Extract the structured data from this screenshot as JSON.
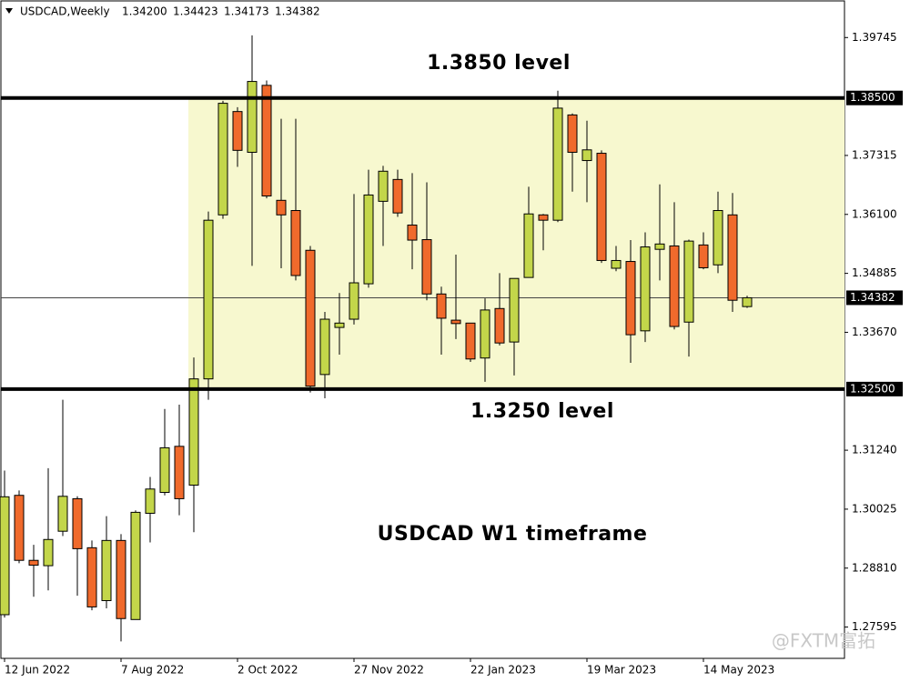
{
  "chart_data": {
    "type": "candlestick",
    "header": {
      "symbol": "USDCAD,Weekly",
      "values": [
        "1.34200",
        "1.34423",
        "1.34173",
        "1.34382"
      ]
    },
    "categories": [
      "12 Jun 2022",
      null,
      null,
      null,
      null,
      null,
      null,
      null,
      "7 Aug 2022",
      null,
      null,
      null,
      null,
      null,
      null,
      null,
      "2 Oct 2022",
      null,
      null,
      null,
      null,
      null,
      null,
      null,
      "27 Nov 2022",
      null,
      null,
      null,
      null,
      null,
      null,
      null,
      "22 Jan 2023",
      null,
      null,
      null,
      null,
      null,
      null,
      null,
      "19 Mar 2023",
      null,
      null,
      null,
      null,
      null,
      null,
      null,
      "14 May 2023",
      null,
      null,
      null
    ],
    "open": [
      1.2785,
      1.3031,
      1.2897,
      1.2886,
      1.2957,
      1.3024,
      1.2923,
      1.2814,
      1.2938,
      1.2775,
      1.2994,
      1.3037,
      1.3132,
      1.3052,
      1.3271,
      1.3609,
      1.3822,
      1.3738,
      1.3876,
      1.3639,
      1.3618,
      1.3536,
      1.328,
      1.3377,
      1.3394,
      1.3467,
      1.3637,
      1.3682,
      1.3588,
      1.3558,
      1.3446,
      1.3392,
      1.3386,
      1.3314,
      1.3416,
      1.3347,
      1.348,
      1.3609,
      1.3598,
      1.3815,
      1.3721,
      1.3736,
      1.3499,
      1.3513,
      1.337,
      1.3538,
      1.3545,
      1.3388,
      1.3547,
      1.3506,
      1.3609,
      1.342
    ],
    "high": [
      1.3082,
      1.3041,
      1.2929,
      1.3087,
      1.3228,
      1.3029,
      1.2938,
      1.2988,
      1.2951,
      1.3,
      1.3069,
      1.3209,
      1.3218,
      1.3315,
      1.3616,
      1.3844,
      1.3831,
      1.3979,
      1.3886,
      1.3807,
      1.3807,
      1.3545,
      1.3409,
      1.3448,
      1.3652,
      1.3702,
      1.371,
      1.3702,
      1.3695,
      1.3676,
      1.3461,
      1.3527,
      1.3386,
      1.3437,
      1.3489,
      1.3478,
      1.3667,
      1.3611,
      1.3865,
      1.3818,
      1.3803,
      1.3742,
      1.3545,
      1.3557,
      1.3573,
      1.3672,
      1.3635,
      1.3558,
      1.3573,
      1.3657,
      1.3654,
      1.34423
    ],
    "low": [
      1.2779,
      1.2891,
      1.2822,
      1.2835,
      1.2947,
      1.2824,
      1.2794,
      1.2798,
      1.273,
      1.2775,
      1.2934,
      1.3031,
      1.299,
      1.2955,
      1.3228,
      1.3601,
      1.3708,
      1.3504,
      1.3643,
      1.3499,
      1.3474,
      1.3243,
      1.3231,
      1.3321,
      1.3383,
      1.3459,
      1.3545,
      1.3605,
      1.3497,
      1.3433,
      1.3321,
      1.3353,
      1.3306,
      1.3265,
      1.334,
      1.3278,
      1.348,
      1.3536,
      1.3594,
      1.3657,
      1.3635,
      1.351,
      1.3493,
      1.3304,
      1.3347,
      1.3474,
      1.3373,
      1.3317,
      1.3497,
      1.3489,
      1.3409,
      1.34173
    ],
    "close": [
      1.3028,
      1.2897,
      1.2887,
      1.294,
      1.3029,
      1.2921,
      1.2801,
      1.2938,
      1.2777,
      1.2996,
      1.3044,
      1.3129,
      1.3024,
      1.3271,
      1.3598,
      1.3839,
      1.3742,
      1.3884,
      1.3648,
      1.3609,
      1.3484,
      1.3256,
      1.3394,
      1.3386,
      1.3469,
      1.365,
      1.3699,
      1.3613,
      1.3557,
      1.3446,
      1.3396,
      1.3385,
      1.3312,
      1.3413,
      1.3345,
      1.3478,
      1.3611,
      1.3598,
      1.3829,
      1.3738,
      1.3743,
      1.3515,
      1.3515,
      1.3362,
      1.3543,
      1.3549,
      1.3379,
      1.3555,
      1.35,
      1.3618,
      1.3433,
      1.34382
    ],
    "up_color": "#c3d64a",
    "down_color": "#f06a2c",
    "ylim": [
      1.2695,
      1.405
    ],
    "yticks": [
      1.39745,
      1.37315,
      {
        "value": 1.361,
        "label": "1.36100"
      },
      1.34885,
      {
        "value": 1.3367,
        "label": "1.33670"
      },
      {
        "value": 1.3124,
        "label": "1.31240"
      },
      1.30025,
      {
        "value": 1.2881,
        "label": "1.28810"
      },
      1.27595
    ],
    "levels": [
      {
        "value": 1.385,
        "label": "1.38500",
        "annotation": "1.3850 level"
      },
      {
        "value": 1.325,
        "label": "1.32500",
        "annotation": "1.3250 level"
      }
    ],
    "zone_color": "#f7f8cf",
    "price_line": {
      "value": 1.34382,
      "label": "1.34382"
    },
    "annotation": "USDCAD W1 timeframe",
    "watermark": "@FXTM富拓"
  }
}
